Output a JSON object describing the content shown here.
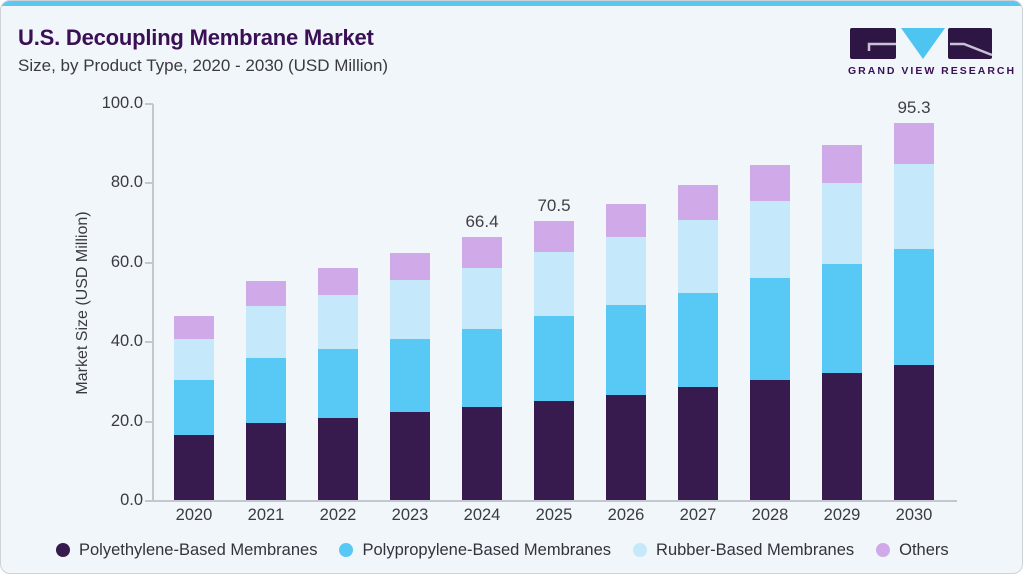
{
  "header": {
    "title": "U.S. Decoupling Membrane Market",
    "subtitle": "Size, by Product Type, 2020 - 2030 (USD Million)",
    "logo_text": "GRAND VIEW RESEARCH"
  },
  "colors": {
    "card_background": "#F1F6FA",
    "top_strip": "#5CC7F1",
    "title": "#3A0F55",
    "axis": "#C2C8CE",
    "tick_text": "#3A3A43",
    "logo_purple": "#2D1544",
    "logo_triangle": "#4EC5F1"
  },
  "chart_data": {
    "type": "bar",
    "stacked": true,
    "title": "U.S. Decoupling Membrane Market Size, by Product Type, 2020 - 2030 (USD Million)",
    "ylabel": "Market Size (USD Million)",
    "ylim": [
      0,
      100
    ],
    "ytick_labels": [
      "0.0",
      "20.0",
      "40.0",
      "60.0",
      "80.0",
      "100.0"
    ],
    "grid": false,
    "legend_position": "bottom",
    "categories": [
      "2020",
      "2021",
      "2022",
      "2023",
      "2024",
      "2025",
      "2026",
      "2027",
      "2028",
      "2029",
      "2030"
    ],
    "series": [
      {
        "name": "Polyethylene-Based Membranes",
        "color": "#371A4E",
        "values": [
          16.6,
          19.7,
          21.0,
          22.3,
          23.7,
          25.2,
          26.7,
          28.6,
          30.4,
          32.3,
          34.3
        ]
      },
      {
        "name": "Polypropylene-Based Membranes",
        "color": "#58C8F4",
        "values": [
          13.8,
          16.4,
          17.2,
          18.5,
          19.7,
          21.3,
          22.6,
          23.9,
          25.7,
          27.4,
          29.1
        ]
      },
      {
        "name": "Rubber-Based Membranes",
        "color": "#C5E9FB",
        "values": [
          10.5,
          12.9,
          13.7,
          14.9,
          15.4,
          16.3,
          17.2,
          18.3,
          19.4,
          20.4,
          21.6
        ]
      },
      {
        "name": "Others",
        "color": "#D0A9E9",
        "values": [
          5.7,
          6.3,
          6.9,
          6.7,
          7.6,
          7.7,
          8.4,
          8.8,
          9.1,
          9.6,
          10.3
        ]
      }
    ],
    "totals_shown": [
      {
        "year": "2024",
        "label": "66.4"
      },
      {
        "year": "2025",
        "label": "70.5"
      },
      {
        "year": "2030",
        "label": "95.3"
      }
    ]
  }
}
